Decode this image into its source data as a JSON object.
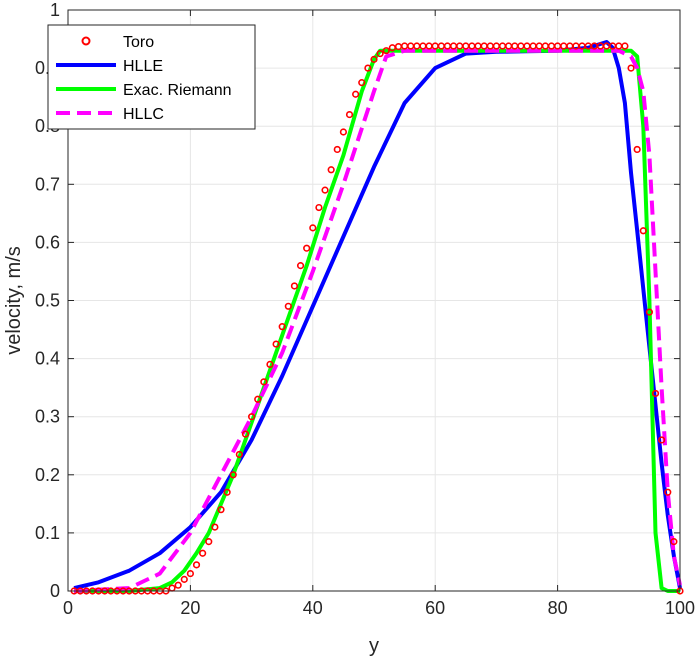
{
  "chart_data": {
    "type": "line",
    "xlabel": "y",
    "ylabel": "velocity, m/s",
    "xlim": [
      0,
      100
    ],
    "ylim": [
      0,
      1
    ],
    "x_ticks": [
      "0",
      "20",
      "40",
      "60",
      "80",
      "100"
    ],
    "y_ticks": [
      "0",
      "0.1",
      "0.2",
      "0.3",
      "0.4",
      "0.5",
      "0.6",
      "0.7",
      "0.8",
      "0.9",
      "1"
    ],
    "grid": true,
    "legend_position": "top-left",
    "series": [
      {
        "name": "Toro",
        "style": "markers",
        "color": "#ff0000",
        "x": [
          1,
          2,
          3,
          4,
          5,
          6,
          7,
          8,
          9,
          10,
          11,
          12,
          13,
          14,
          15,
          16,
          17,
          18,
          19,
          20,
          21,
          22,
          23,
          24,
          25,
          26,
          27,
          28,
          29,
          30,
          31,
          32,
          33,
          34,
          35,
          36,
          37,
          38,
          39,
          40,
          41,
          42,
          43,
          44,
          45,
          46,
          47,
          48,
          49,
          50,
          51,
          52,
          53,
          54,
          55,
          56,
          57,
          58,
          59,
          60,
          61,
          62,
          63,
          64,
          65,
          66,
          67,
          68,
          69,
          70,
          71,
          72,
          73,
          74,
          75,
          76,
          77,
          78,
          79,
          80,
          81,
          82,
          83,
          84,
          85,
          86,
          87,
          88,
          89,
          90,
          91,
          92,
          93,
          94,
          95,
          96,
          97,
          98,
          99,
          100
        ],
        "y": [
          0,
          0,
          0,
          0,
          0,
          0,
          0,
          0,
          0,
          0,
          0,
          0,
          0,
          0,
          0,
          0,
          0.005,
          0.01,
          0.02,
          0.03,
          0.045,
          0.065,
          0.085,
          0.11,
          0.14,
          0.17,
          0.2,
          0.235,
          0.27,
          0.3,
          0.33,
          0.36,
          0.39,
          0.425,
          0.455,
          0.49,
          0.525,
          0.56,
          0.59,
          0.625,
          0.66,
          0.69,
          0.725,
          0.76,
          0.79,
          0.82,
          0.855,
          0.875,
          0.9,
          0.915,
          0.925,
          0.93,
          0.935,
          0.937,
          0.938,
          0.938,
          0.938,
          0.938,
          0.938,
          0.938,
          0.938,
          0.938,
          0.938,
          0.938,
          0.938,
          0.938,
          0.938,
          0.938,
          0.938,
          0.938,
          0.938,
          0.938,
          0.938,
          0.938,
          0.938,
          0.938,
          0.938,
          0.938,
          0.938,
          0.938,
          0.938,
          0.938,
          0.938,
          0.938,
          0.938,
          0.938,
          0.938,
          0.938,
          0.938,
          0.938,
          0.938,
          0.9,
          0.76,
          0.62,
          0.48,
          0.34,
          0.26,
          0.17,
          0.085,
          0
        ]
      },
      {
        "name": "HLLE",
        "style": "solid",
        "color": "#0000ff",
        "x": [
          1,
          5,
          10,
          15,
          20,
          25,
          30,
          35,
          40,
          45,
          50,
          55,
          60,
          65,
          70,
          75,
          80,
          85,
          88,
          89,
          90,
          91,
          92,
          93,
          94,
          95,
          96,
          97,
          98,
          99,
          100
        ],
        "y": [
          0.005,
          0.015,
          0.035,
          0.065,
          0.11,
          0.17,
          0.26,
          0.37,
          0.49,
          0.61,
          0.73,
          0.84,
          0.9,
          0.925,
          0.928,
          0.929,
          0.93,
          0.935,
          0.945,
          0.935,
          0.9,
          0.84,
          0.72,
          0.62,
          0.52,
          0.42,
          0.32,
          0.22,
          0.13,
          0.06,
          0.005
        ]
      },
      {
        "name": "Exac. Riemann",
        "style": "solid",
        "color": "#00ff00",
        "x": [
          1,
          10,
          15,
          17,
          19,
          21,
          23,
          25,
          27,
          30,
          33,
          36,
          39,
          42,
          45,
          48,
          50,
          51,
          52,
          55,
          60,
          70,
          80,
          90,
          92,
          93,
          94,
          95,
          96,
          97,
          98,
          100
        ],
        "y": [
          0,
          0,
          0.005,
          0.015,
          0.035,
          0.065,
          0.1,
          0.15,
          0.2,
          0.29,
          0.38,
          0.47,
          0.56,
          0.66,
          0.75,
          0.86,
          0.915,
          0.93,
          0.93,
          0.93,
          0.93,
          0.93,
          0.93,
          0.93,
          0.93,
          0.92,
          0.8,
          0.5,
          0.1,
          0.005,
          0,
          0
        ]
      },
      {
        "name": "HLLC",
        "style": "dashed",
        "color": "#ff00ff",
        "x": [
          1,
          10,
          15,
          20,
          25,
          30,
          35,
          40,
          45,
          50,
          52,
          55,
          60,
          70,
          80,
          90,
          92,
          93,
          94,
          95,
          96,
          97,
          98,
          99,
          100
        ],
        "y": [
          0,
          0.005,
          0.03,
          0.1,
          0.2,
          0.3,
          0.41,
          0.55,
          0.7,
          0.86,
          0.92,
          0.93,
          0.93,
          0.93,
          0.93,
          0.93,
          0.92,
          0.9,
          0.86,
          0.75,
          0.55,
          0.35,
          0.17,
          0.06,
          0.01
        ]
      }
    ]
  }
}
